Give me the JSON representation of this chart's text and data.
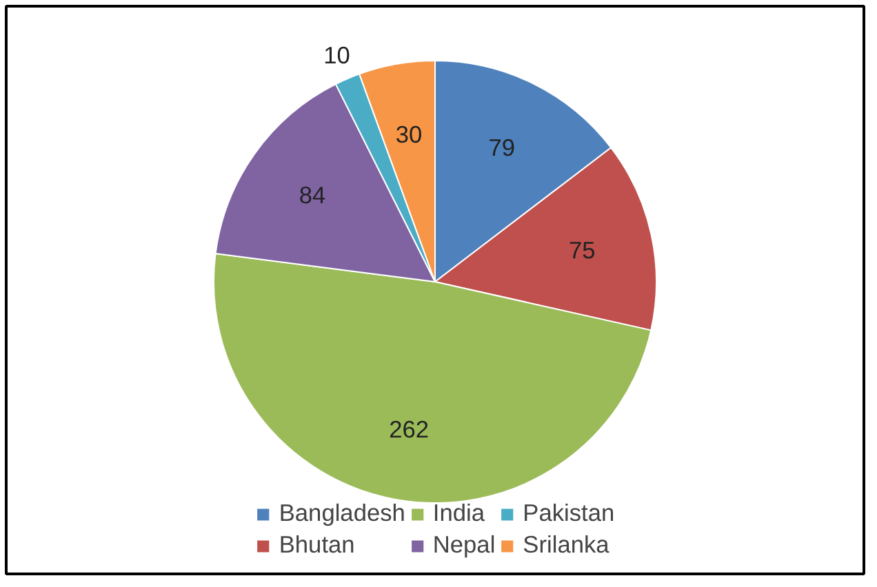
{
  "chart_data": {
    "type": "pie",
    "categories": [
      "Bangladesh",
      "Bhutan",
      "India",
      "Nepal",
      "Pakistan",
      "Srilanka"
    ],
    "values": [
      79,
      75,
      262,
      84,
      10,
      30
    ],
    "colors": [
      "#4f81bd",
      "#c0504d",
      "#9bbb59",
      "#8064a2",
      "#4bacc6",
      "#f79646"
    ],
    "data_labels": true,
    "legend": "bottom"
  }
}
